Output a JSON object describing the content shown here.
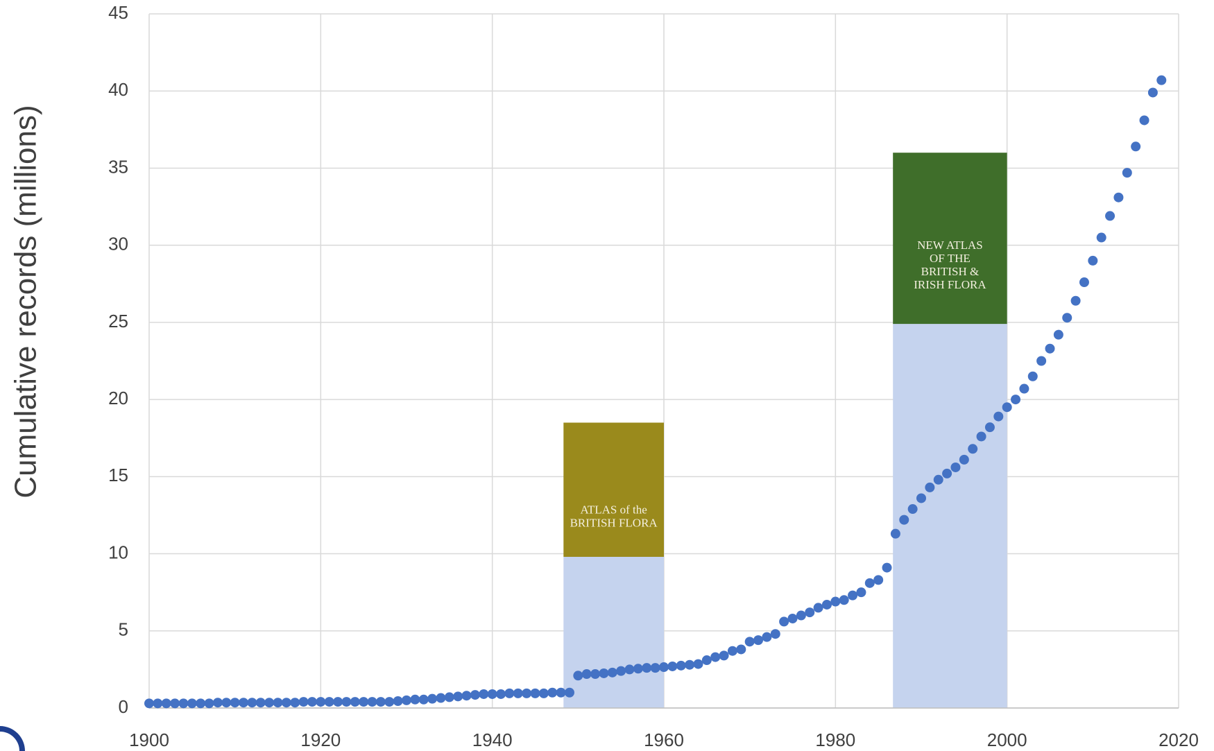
{
  "chart_data": {
    "type": "scatter",
    "y_label": "Cumulative records (millions)",
    "x": [
      1900,
      1901,
      1902,
      1903,
      1904,
      1905,
      1906,
      1907,
      1908,
      1909,
      1910,
      1911,
      1912,
      1913,
      1914,
      1915,
      1916,
      1917,
      1918,
      1919,
      1920,
      1921,
      1922,
      1923,
      1924,
      1925,
      1926,
      1927,
      1928,
      1929,
      1930,
      1931,
      1932,
      1933,
      1934,
      1935,
      1936,
      1937,
      1938,
      1939,
      1940,
      1941,
      1942,
      1943,
      1944,
      1945,
      1946,
      1947,
      1948,
      1949,
      1950,
      1951,
      1952,
      1953,
      1954,
      1955,
      1956,
      1957,
      1958,
      1959,
      1960,
      1961,
      1962,
      1963,
      1964,
      1965,
      1966,
      1967,
      1968,
      1969,
      1970,
      1971,
      1972,
      1973,
      1974,
      1975,
      1976,
      1977,
      1978,
      1979,
      1980,
      1981,
      1982,
      1983,
      1984,
      1985,
      1986,
      1987,
      1988,
      1989,
      1990,
      1991,
      1992,
      1993,
      1994,
      1995,
      1996,
      1997,
      1998,
      1999,
      2000,
      2001,
      2002,
      2003,
      2004,
      2005,
      2006,
      2007,
      2008,
      2009,
      2010,
      2011,
      2012,
      2013,
      2014,
      2015,
      2016,
      2017,
      2018
    ],
    "values": [
      0.3,
      0.3,
      0.3,
      0.3,
      0.3,
      0.3,
      0.3,
      0.3,
      0.35,
      0.35,
      0.35,
      0.35,
      0.35,
      0.35,
      0.35,
      0.35,
      0.35,
      0.35,
      0.4,
      0.4,
      0.4,
      0.4,
      0.4,
      0.4,
      0.4,
      0.4,
      0.4,
      0.4,
      0.4,
      0.45,
      0.5,
      0.55,
      0.55,
      0.6,
      0.65,
      0.7,
      0.75,
      0.8,
      0.85,
      0.9,
      0.9,
      0.9,
      0.95,
      0.95,
      0.95,
      0.95,
      0.95,
      1.0,
      1.0,
      1.0,
      2.1,
      2.2,
      2.2,
      2.25,
      2.3,
      2.4,
      2.5,
      2.55,
      2.6,
      2.6,
      2.65,
      2.7,
      2.75,
      2.8,
      2.85,
      3.1,
      3.3,
      3.4,
      3.7,
      3.8,
      4.3,
      4.4,
      4.6,
      4.8,
      5.6,
      5.8,
      6.0,
      6.2,
      6.5,
      6.7,
      6.9,
      7.0,
      7.3,
      7.5,
      8.1,
      8.3,
      9.1,
      11.3,
      12.2,
      12.9,
      13.6,
      14.3,
      14.8,
      15.2,
      15.6,
      16.1,
      16.8,
      17.6,
      18.2,
      18.9,
      19.5,
      20.0,
      20.7,
      21.5,
      22.5,
      23.3,
      24.2,
      25.3,
      26.4,
      27.6,
      29.0,
      30.5,
      31.9,
      33.1,
      34.7,
      36.4,
      38.1,
      39.9,
      40.7
    ],
    "color": "#4472c4",
    "xlim": [
      1900,
      2020
    ],
    "xticks": [
      1900,
      1920,
      1940,
      1960,
      1980,
      2000,
      2020
    ],
    "ylim": [
      0,
      45
    ],
    "yticks": [
      0,
      5,
      10,
      15,
      20,
      25,
      30,
      35,
      40,
      45
    ],
    "grid": true,
    "spans": [
      {
        "start": 1948.3,
        "end": 1960,
        "top": 9.8,
        "cover_top": 18.5,
        "cover_color": "#9a8a1c",
        "cover_text": [
          "ATLAS of the",
          "BRITISH FLORA"
        ]
      },
      {
        "start": 1986.7,
        "end": 2000,
        "top": 24.9,
        "cover_top": 36,
        "cover_color": "#3f6e2a",
        "cover_text": [
          "NEW ATLAS",
          "OF THE",
          "BRITISH &",
          "IRISH FLORA"
        ]
      }
    ]
  }
}
